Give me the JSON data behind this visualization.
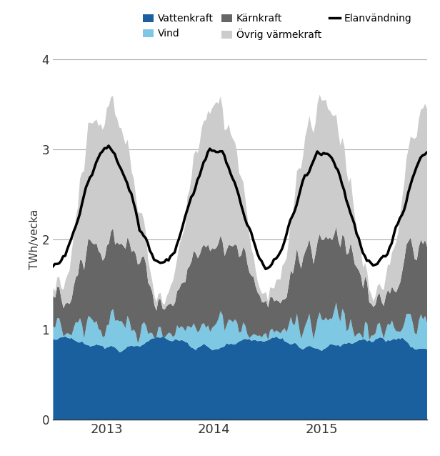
{
  "title": "",
  "ylabel": "TWh/vecka",
  "ylim": [
    0,
    4
  ],
  "yticks": [
    0,
    1,
    2,
    3,
    4
  ],
  "figsize": [
    6.16,
    6.38
  ],
  "dpi": 100,
  "colors": {
    "vattenkraft": "#1a5f9e",
    "vind": "#7ec8e3",
    "karnkraft": "#666666",
    "ovrig": "#cccccc",
    "elanvandning": "#000000"
  },
  "legend_labels": [
    "Vattenkraft",
    "Vind",
    "Kärnkraft",
    "Övrig värmekraft",
    "Elanvändning"
  ],
  "x_tick_labels": [
    "2013",
    "2014",
    "2015"
  ],
  "grid_color": "#aaaaaa",
  "axis_color": "#aaaaaa"
}
